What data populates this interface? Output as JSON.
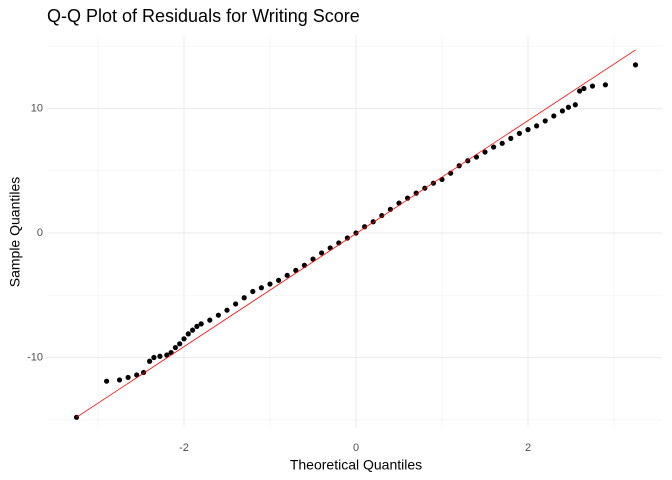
{
  "chart_data": {
    "type": "scatter",
    "title": "Q-Q Plot of Residuals for Writing Score",
    "x_label": "Theoretical Quantiles",
    "y_label": "Sample Quantiles",
    "x": [
      -3.25,
      -2.9,
      -2.75,
      -2.65,
      -2.55,
      -2.47,
      -2.4,
      -2.35,
      -2.28,
      -2.2,
      -2.15,
      -2.1,
      -2.05,
      -2.0,
      -1.95,
      -1.9,
      -1.85,
      -1.8,
      -1.7,
      -1.6,
      -1.5,
      -1.4,
      -1.3,
      -1.2,
      -1.1,
      -1.0,
      -0.9,
      -0.8,
      -0.7,
      -0.6,
      -0.5,
      -0.4,
      -0.3,
      -0.2,
      -0.1,
      0.0,
      0.1,
      0.2,
      0.3,
      0.4,
      0.5,
      0.6,
      0.7,
      0.8,
      0.9,
      1.0,
      1.1,
      1.2,
      1.3,
      1.4,
      1.5,
      1.6,
      1.7,
      1.8,
      1.9,
      2.0,
      2.1,
      2.2,
      2.3,
      2.4,
      2.47,
      2.55,
      2.6,
      2.65,
      2.75,
      2.9,
      3.25
    ],
    "y": [
      -14.8,
      -11.9,
      -11.8,
      -11.6,
      -11.4,
      -11.2,
      -10.3,
      -10.0,
      -9.9,
      -9.8,
      -9.6,
      -9.2,
      -8.9,
      -8.5,
      -8.1,
      -7.8,
      -7.5,
      -7.3,
      -7.0,
      -6.6,
      -6.2,
      -5.7,
      -5.2,
      -4.7,
      -4.4,
      -4.1,
      -3.8,
      -3.4,
      -3.0,
      -2.6,
      -2.1,
      -1.6,
      -1.2,
      -0.8,
      -0.4,
      0.0,
      0.5,
      0.9,
      1.4,
      1.9,
      2.4,
      2.8,
      3.2,
      3.6,
      4.0,
      4.3,
      4.8,
      5.4,
      5.8,
      6.1,
      6.5,
      6.9,
      7.2,
      7.6,
      8.0,
      8.3,
      8.6,
      9.0,
      9.4,
      9.8,
      10.1,
      10.3,
      11.4,
      11.6,
      11.8,
      11.9,
      13.5
    ],
    "color": "#000000",
    "reference_line": {
      "x": [
        -3.25,
        3.25
      ],
      "y": [
        -14.8,
        14.7
      ],
      "color": "#ff0000"
    },
    "xlim": [
      -3.593,
      3.558
    ],
    "ylim": [
      -15.66,
      15.9
    ],
    "xticks": [
      -2,
      0,
      2
    ],
    "yticks": [
      -10,
      0,
      10
    ],
    "grid": true,
    "minor_grid": true
  }
}
